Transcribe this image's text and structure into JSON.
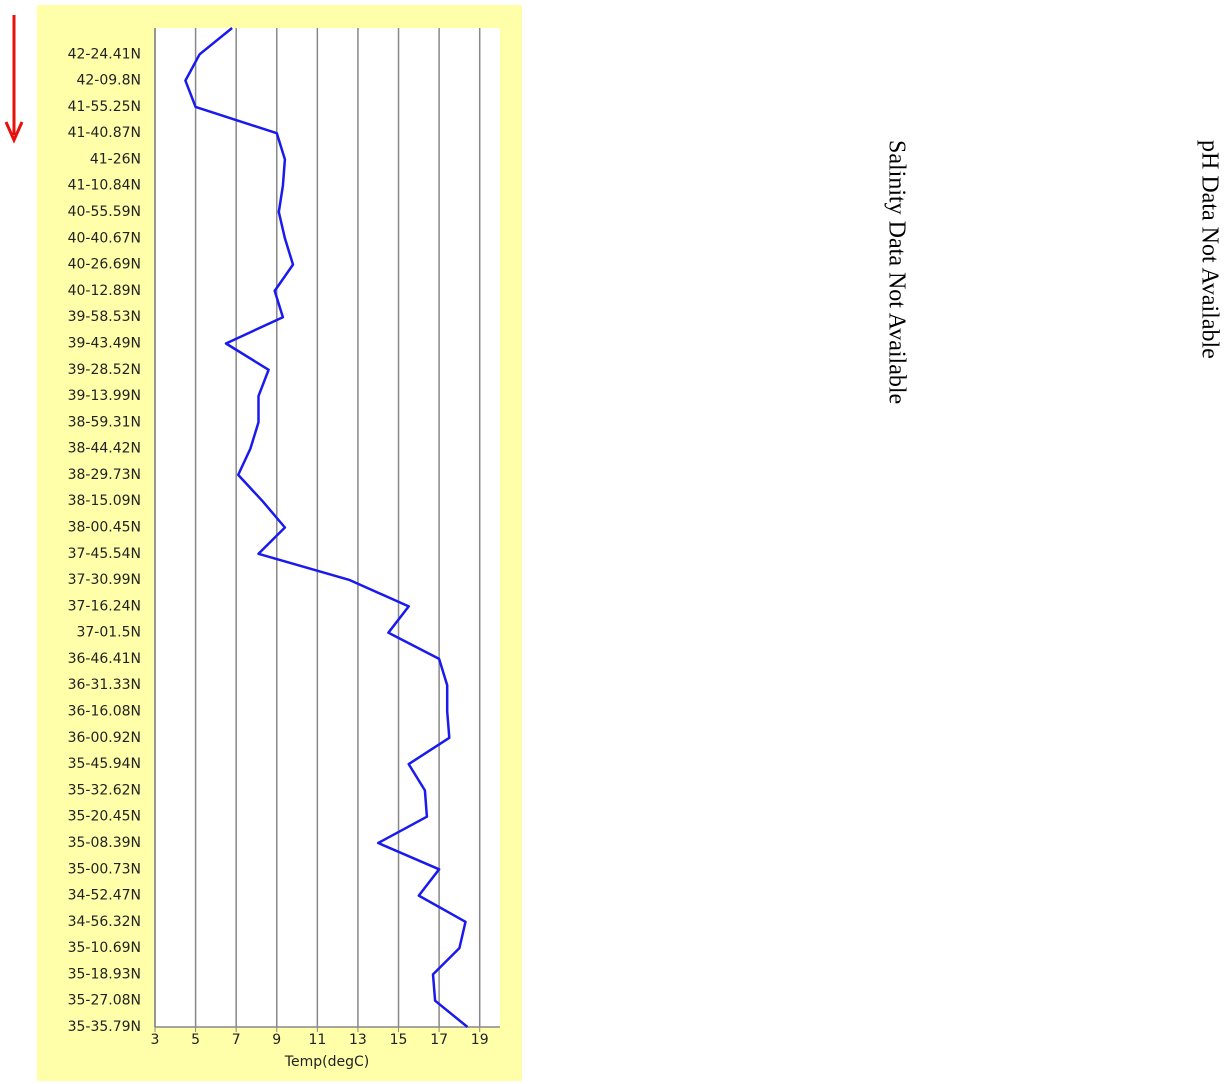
{
  "chart_data": {
    "type": "line",
    "x_label": "Temp(degC)",
    "categories": [
      null,
      "42-24.41N",
      "42-09.8N",
      "41-55.25N",
      "41-40.87N",
      "41-26N",
      "41-10.84N",
      "40-55.59N",
      "40-40.67N",
      "40-26.69N",
      "40-12.89N",
      "39-58.53N",
      "39-43.49N",
      "39-28.52N",
      "39-13.99N",
      "38-59.31N",
      "38-44.42N",
      "38-29.73N",
      "38-15.09N",
      "38-00.45N",
      "37-45.54N",
      "37-30.99N",
      "37-16.24N",
      "37-01.5N",
      "36-46.41N",
      "36-31.33N",
      "36-16.08N",
      "36-00.92N",
      "35-45.94N",
      "35-32.62N",
      "35-20.45N",
      "35-08.39N",
      "35-00.73N",
      "34-52.47N",
      "34-56.32N",
      "35-10.69N",
      "35-18.93N",
      "35-27.08N",
      "35-35.79N"
    ],
    "values": [
      6.8,
      5.2,
      4.5,
      5.0,
      9.0,
      9.4,
      9.3,
      9.1,
      9.4,
      9.8,
      8.9,
      9.3,
      6.5,
      8.6,
      8.1,
      8.1,
      7.7,
      7.1,
      8.3,
      9.4,
      8.1,
      12.6,
      15.5,
      14.5,
      17.0,
      17.4,
      17.4,
      17.5,
      15.5,
      16.3,
      16.4,
      14.0,
      17.0,
      16.0,
      18.3,
      18.0,
      16.7,
      16.8,
      18.4
    ],
    "color": "#1a1aee",
    "xlim": [
      3,
      20
    ],
    "xticks": [
      3,
      5,
      7,
      9,
      11,
      13,
      15,
      17,
      19
    ],
    "grid": true
  },
  "salinity_note": "Salinity Data Not Available",
  "ph_note": "pH Data Not Available"
}
